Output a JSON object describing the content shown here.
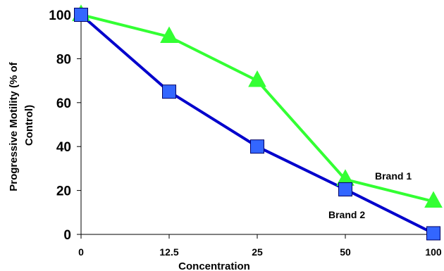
{
  "chart_data": {
    "type": "line",
    "categories": [
      "0",
      "12.5",
      "25",
      "50",
      "100"
    ],
    "xlabel": "Concentration",
    "ylabel": "Progressive Motility (% of Control)",
    "ylabel_lines": [
      "Progressive Motility (% of",
      "Control)"
    ],
    "ylim": [
      0,
      100
    ],
    "yticks": [
      0,
      20,
      40,
      60,
      80,
      100
    ],
    "grid": false,
    "legend": "none",
    "series": [
      {
        "name": "Brand 1",
        "values": [
          100,
          90,
          70,
          25,
          15
        ],
        "color": "#33ff33",
        "marker": "triangle"
      },
      {
        "name": "Brand 2",
        "values": [
          100,
          65,
          40,
          20.5,
          0.5
        ],
        "color": "#0000cc",
        "marker": "square",
        "marker_fill": "#3366ff"
      }
    ]
  }
}
